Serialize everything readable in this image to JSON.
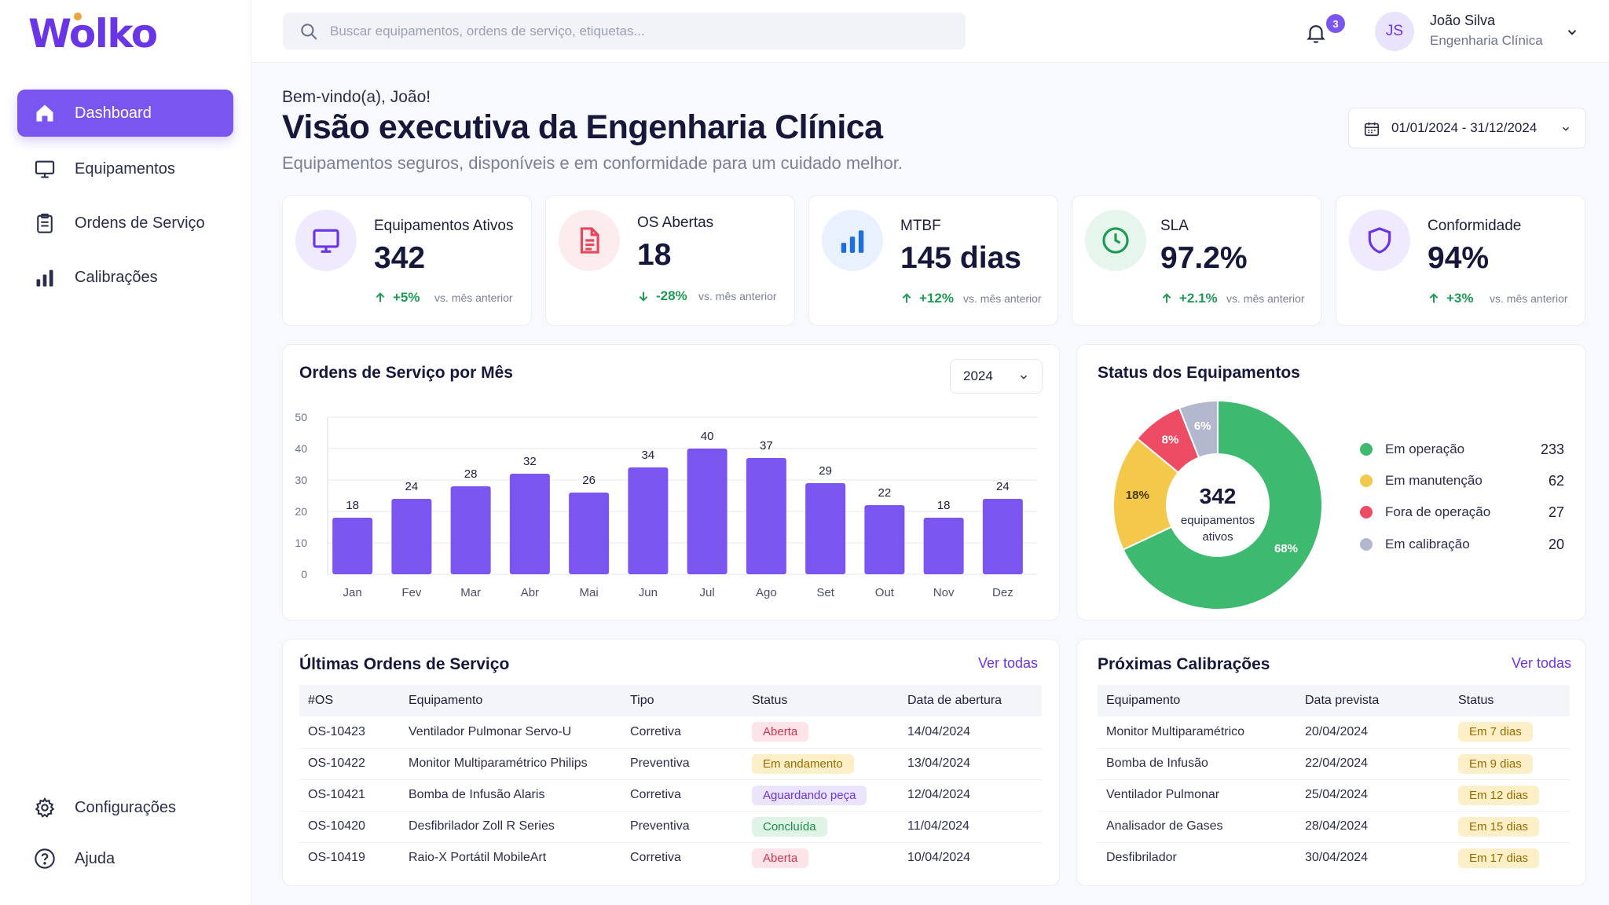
{
  "app": {
    "logo": "Wolko"
  },
  "sidebar": {
    "items": [
      {
        "label": "Dashboard",
        "icon": "home-icon",
        "active": true
      },
      {
        "label": "Equipamentos",
        "icon": "monitor-icon"
      },
      {
        "label": "Ordens de Serviço",
        "icon": "clipboard-icon"
      },
      {
        "label": "Calibrações",
        "icon": "bar-chart-icon"
      }
    ],
    "bottom": [
      {
        "label": "Configurações",
        "icon": "gear-icon"
      },
      {
        "label": "Ajuda",
        "icon": "help-icon"
      }
    ]
  },
  "topbar": {
    "search_placeholder": "Buscar equipamentos, ordens de serviço, etiquetas...",
    "notifications": "3",
    "user_initials": "JS",
    "user_name": "João Silva",
    "user_role": "Engenharia Clínica"
  },
  "header": {
    "welcome": "Bem-vindo(a), João!",
    "title": "Visão executiva da Engenharia Clínica",
    "subtitle": "Equipamentos seguros, disponíveis e em conformidade para um cuidado melhor.",
    "date_range": "01/01/2024 - 31/12/2024"
  },
  "kpis": [
    {
      "label": "Equipamentos Ativos",
      "value": "342",
      "delta": "+5%",
      "direction": "up",
      "compare": "vs. mês anterior",
      "icon": "monitor-icon",
      "color": "#6a35e6",
      "bg": "#efeafd"
    },
    {
      "label": "OS Abertas",
      "value": "18",
      "delta": "-28%",
      "direction": "down",
      "compare": "vs. mês anterior",
      "icon": "document-icon",
      "color": "#e5485d",
      "bg": "#fdecee"
    },
    {
      "label": "MTBF",
      "value": "145 dias",
      "delta": "+12%",
      "direction": "up",
      "compare": "vs. mês anterior",
      "icon": "bar-chart-icon",
      "color": "#1d6fe0",
      "bg": "#e8f1fd"
    },
    {
      "label": "SLA",
      "value": "97.2%",
      "delta": "+2.1%",
      "direction": "up",
      "compare": "vs. mês anterior",
      "icon": "clock-icon",
      "color": "#1f9a55",
      "bg": "#e6f6ec"
    },
    {
      "label": "Conformidade",
      "value": "94%",
      "delta": "+3%",
      "direction": "up",
      "compare": "vs. mês anterior",
      "icon": "shield-icon",
      "color": "#6a35e6",
      "bg": "#efeafd"
    }
  ],
  "orders_chart": {
    "title": "Ordens de Serviço por Mês",
    "year": "2024"
  },
  "chart_data": {
    "type": "bar",
    "categories": [
      "Jan",
      "Fev",
      "Mar",
      "Abr",
      "Mai",
      "Jun",
      "Jul",
      "Ago",
      "Set",
      "Out",
      "Nov",
      "Dez"
    ],
    "values": [
      18,
      24,
      28,
      32,
      26,
      34,
      40,
      37,
      29,
      22,
      18,
      24
    ],
    "title": "Ordens de Serviço por Mês",
    "xlabel": "",
    "ylabel": "",
    "ylim": [
      0,
      50
    ],
    "yticks": [
      0,
      10,
      20,
      30,
      40,
      50
    ],
    "grid": true,
    "color": "#7b55f0"
  },
  "status": {
    "title": "Status dos Equipamentos",
    "total": "342",
    "total_label_1": "equipamentos",
    "total_label_2": "ativos",
    "segments": [
      {
        "label": "Em operação",
        "count": "233",
        "percent": 68,
        "percent_label": "68%",
        "color": "#3dba6f"
      },
      {
        "label": "Em manutenção",
        "count": "62",
        "percent": 18,
        "percent_label": "18%",
        "color": "#f4c84a"
      },
      {
        "label": "Fora de operação",
        "count": "27",
        "percent": 8,
        "percent_label": "8%",
        "color": "#ee4c64"
      },
      {
        "label": "Em calibração",
        "count": "20",
        "percent": 6,
        "percent_label": "6%",
        "color": "#b4b8cf"
      }
    ]
  },
  "orders_table": {
    "title": "Últimas Ordens de Serviço",
    "view_all": "Ver todas",
    "headers": [
      "#OS",
      "Equipamento",
      "Tipo",
      "Status",
      "Data de abertura"
    ],
    "rows": [
      {
        "id": "OS-10423",
        "equipment": "Ventilador Pulmonar Servo-U",
        "type": "Corretiva",
        "status": "Aberta",
        "status_color": "#d2344b",
        "status_bg": "#fde4e8",
        "date": "14/04/2024"
      },
      {
        "id": "OS-10422",
        "equipment": "Monitor Multiparamétrico Philips",
        "type": "Preventiva",
        "status": "Em andamento",
        "status_color": "#9a6a00",
        "status_bg": "#fdf0c8",
        "date": "13/04/2024"
      },
      {
        "id": "OS-10421",
        "equipment": "Bomba de Infusão Alaris",
        "type": "Corretiva",
        "status": "Aguardando peça",
        "status_color": "#6a35e6",
        "status_bg": "#ebe4fd",
        "date": "12/04/2024"
      },
      {
        "id": "OS-10420",
        "equipment": "Desfibrilador Zoll R Series",
        "type": "Preventiva",
        "status": "Concluída",
        "status_color": "#1f8a4c",
        "status_bg": "#dff4e7",
        "date": "11/04/2024"
      },
      {
        "id": "OS-10419",
        "equipment": "Raio-X Portátil MobileArt",
        "type": "Corretiva",
        "status": "Aberta",
        "status_color": "#d2344b",
        "status_bg": "#fde4e8",
        "date": "10/04/2024"
      }
    ]
  },
  "calibrations_table": {
    "title": "Próximas Calibrações",
    "view_all": "Ver todas",
    "headers": [
      "Equipamento",
      "Data prevista",
      "Status"
    ],
    "rows": [
      {
        "equipment": "Monitor Multiparamétrico",
        "date": "20/04/2024",
        "status": "Em 7 dias"
      },
      {
        "equipment": "Bomba de Infusão",
        "date": "22/04/2024",
        "status": "Em 9 dias"
      },
      {
        "equipment": "Ventilador Pulmonar",
        "date": "25/04/2024",
        "status": "Em 12 dias"
      },
      {
        "equipment": "Analisador de Gases",
        "date": "28/04/2024",
        "status": "Em 15 dias"
      },
      {
        "equipment": "Desfibrilador",
        "date": "30/04/2024",
        "status": "Em 17 dias"
      }
    ],
    "status_color": "#9a6a00",
    "status_bg": "#fdf0c8"
  }
}
